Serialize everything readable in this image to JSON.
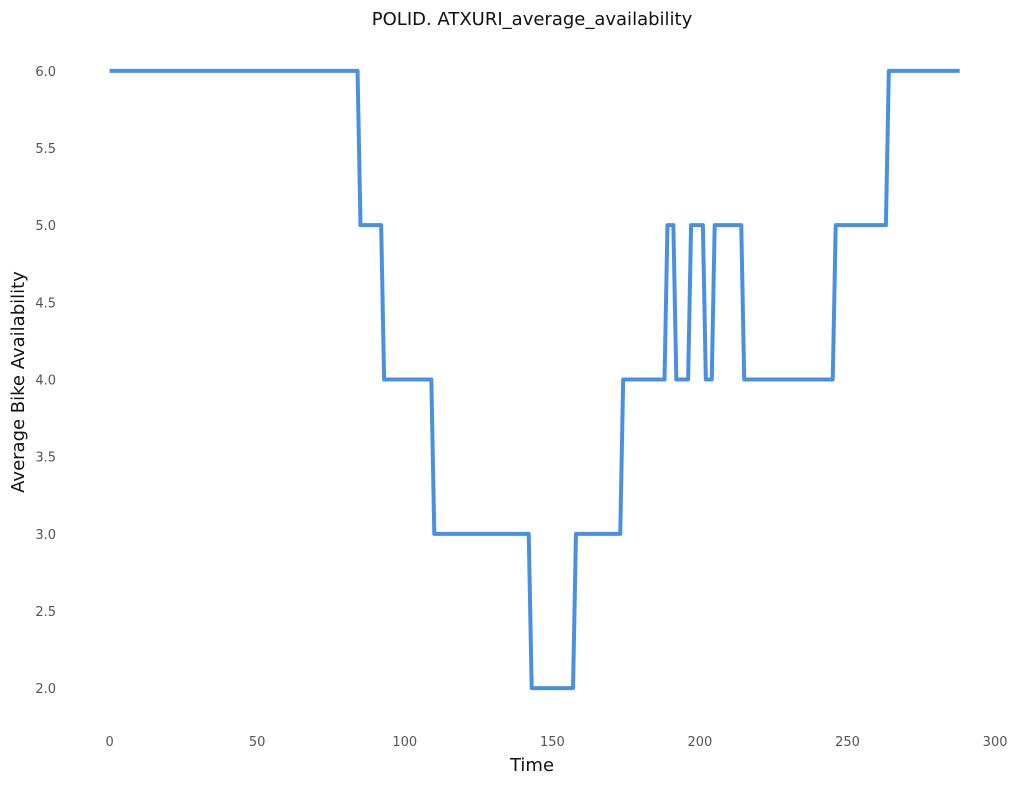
{
  "chart_data": {
    "type": "line",
    "title": "POLID. ATXURI_average_availability",
    "xlabel": "Time",
    "ylabel": "Average Bike Availability",
    "xlim": [
      -8,
      302
    ],
    "ylim": [
      1.8,
      6.2
    ],
    "xticks": [
      0,
      50,
      100,
      150,
      200,
      250,
      300
    ],
    "yticks": [
      2.0,
      2.5,
      3.0,
      3.5,
      4.0,
      4.5,
      5.0,
      5.5,
      6.0
    ],
    "xtick_labels": [
      "0",
      "50",
      "100",
      "150",
      "200",
      "250",
      "300"
    ],
    "ytick_labels": [
      "2.0",
      "2.5",
      "3.0",
      "3.5",
      "4.0",
      "4.5",
      "5.0",
      "5.5",
      "6.0"
    ],
    "grid": false,
    "legend": "none",
    "series": [
      {
        "color": "#4a90e2",
        "x": [
          0,
          84,
          85,
          92,
          93,
          109,
          110,
          142,
          143,
          157,
          158,
          173,
          174,
          188,
          189,
          191,
          192,
          196,
          197,
          201,
          202,
          204,
          205,
          214,
          215,
          245,
          246,
          263,
          264,
          288
        ],
        "y": [
          6,
          6,
          5,
          5,
          4,
          4,
          3,
          3,
          2,
          2,
          3,
          3,
          4,
          4,
          5,
          5,
          4,
          4,
          5,
          5,
          4,
          4,
          5,
          5,
          4,
          4,
          5,
          5,
          6,
          6
        ]
      }
    ]
  }
}
